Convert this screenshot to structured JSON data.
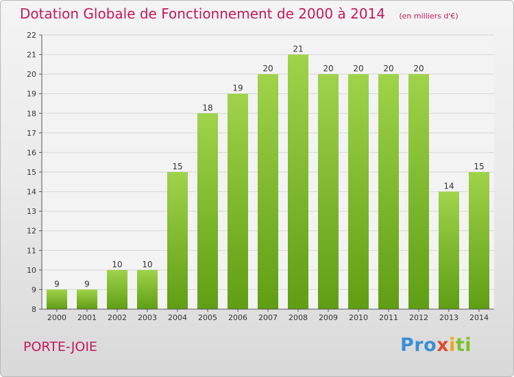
{
  "chart_data": {
    "type": "bar",
    "title": "Dotation Globale de Fonctionnement de 2000 à 2014",
    "subtitle": "(en milliers d'€)",
    "categories": [
      "2000",
      "2001",
      "2002",
      "2003",
      "2004",
      "2005",
      "2006",
      "2007",
      "2008",
      "2009",
      "2010",
      "2011",
      "2012",
      "2013",
      "2014"
    ],
    "values": [
      9,
      9,
      10,
      10,
      15,
      18,
      19,
      20,
      21,
      20,
      20,
      20,
      20,
      14,
      15
    ],
    "yticks": [
      8,
      9,
      10,
      11,
      12,
      13,
      14,
      15,
      16,
      17,
      18,
      19,
      20,
      21,
      22
    ],
    "ylim": [
      8,
      22
    ],
    "grid": "horizontal",
    "bar_color": "#7fbf2a"
  },
  "footer": {
    "commune": "PORTE-JOIE",
    "logo_parts": [
      "Pro",
      "x",
      "i",
      "ti"
    ]
  }
}
